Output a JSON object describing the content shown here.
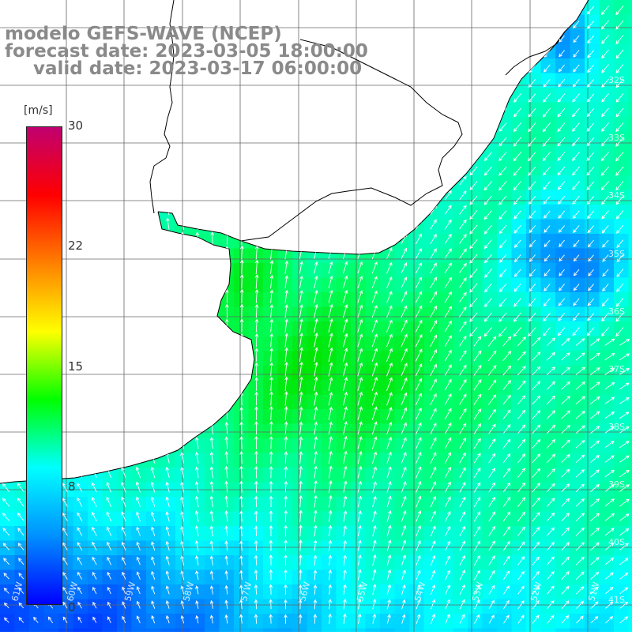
{
  "title": {
    "line1": "modelo GEFS-WAVE (NCEP)",
    "line2": "forecast date: 2023-03-05 18:00:00",
    "line3": "valid date: 2023-03-17 06:00:00"
  },
  "colorbar": {
    "unit": "[m/s]",
    "ticks": [
      "30",
      "22",
      "15",
      "8",
      "0"
    ],
    "tick_values": [
      30,
      22,
      15,
      8,
      0
    ],
    "min": 0,
    "max": 30,
    "colors": [
      "#0000ff",
      "#0090ff",
      "#00ffff",
      "#00ff00",
      "#ffff00",
      "#ff8000",
      "#ff0000",
      "#c00070"
    ]
  },
  "lat_labels": [
    "32S",
    "33S",
    "34S",
    "35S",
    "36S",
    "37S",
    "38S",
    "39S",
    "40S",
    "41S"
  ],
  "lon_labels": [
    "61W",
    "60W",
    "59W",
    "58W",
    "57W",
    "56W",
    "55W",
    "54W",
    "53W",
    "52W",
    "51W"
  ],
  "colors": {
    "land": "#ffffff",
    "coastline": "#000000",
    "grid": "#666666",
    "title_text": "#8a8a8a",
    "arrow": "#ffffff"
  },
  "icons": {
    "arrows": "wind-direction-arrow"
  }
}
